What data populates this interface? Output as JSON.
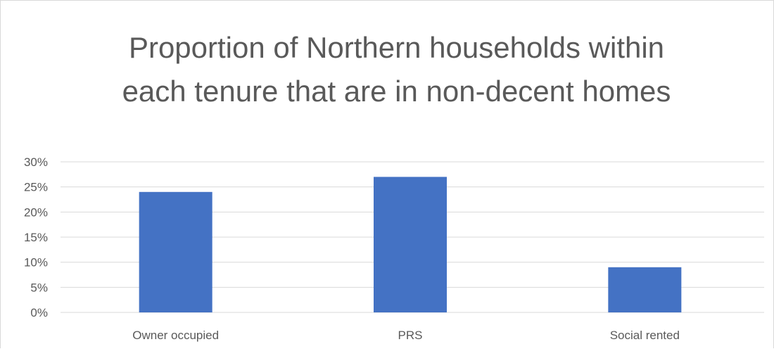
{
  "chart_data": {
    "type": "bar",
    "title_lines": [
      "Proportion of Northern households within",
      "each tenure that are in non-decent homes"
    ],
    "categories": [
      "Owner occupied",
      "PRS",
      "Social rented"
    ],
    "values": [
      0.24,
      0.27,
      0.09
    ],
    "ylim": [
      0,
      0.3
    ],
    "yticks": [
      {
        "value": 0.0,
        "label": "0%"
      },
      {
        "value": 0.05,
        "label": "5%"
      },
      {
        "value": 0.1,
        "label": "10%"
      },
      {
        "value": 0.15,
        "label": "15%"
      },
      {
        "value": 0.2,
        "label": "20%"
      },
      {
        "value": 0.25,
        "label": "25%"
      },
      {
        "value": 0.3,
        "label": "30%"
      }
    ],
    "grid": true,
    "legend": "none",
    "colors": {
      "bar": "#4472C4",
      "grid": "#d9d9d9",
      "text": "#595959"
    }
  }
}
